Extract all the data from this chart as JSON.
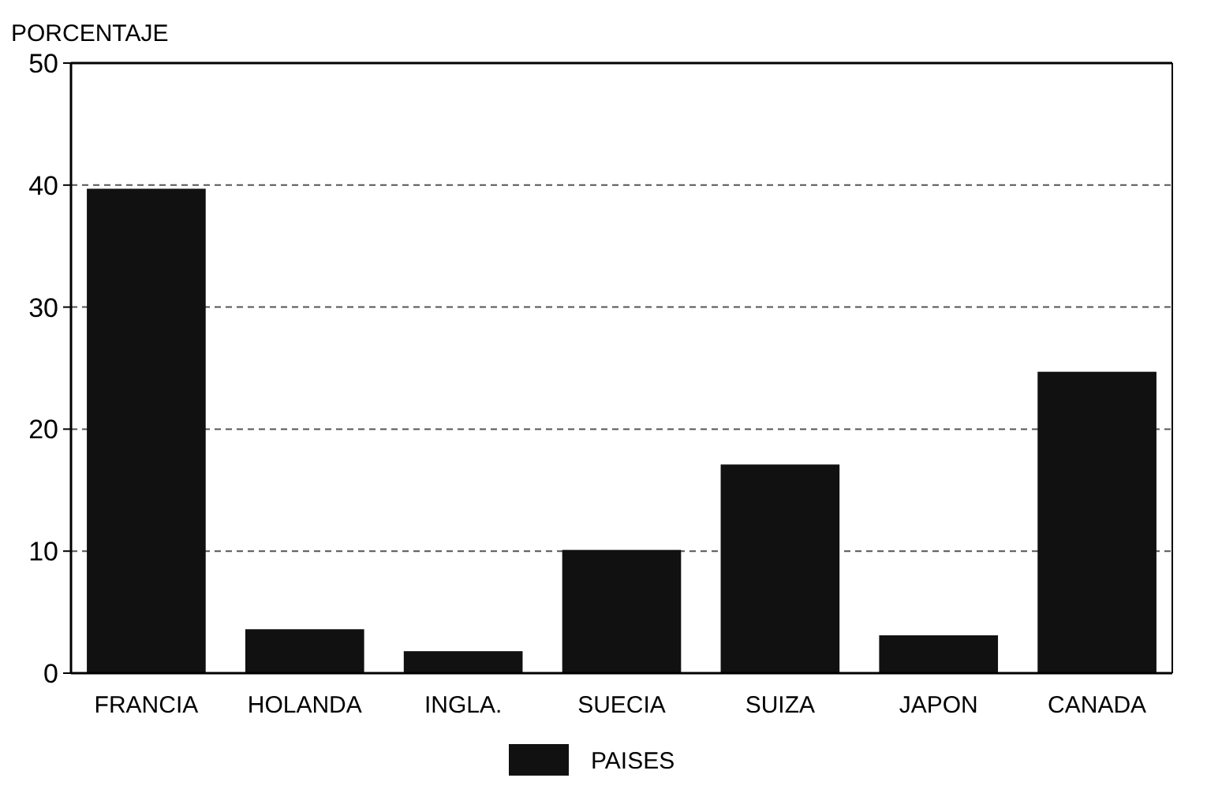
{
  "chart_data": {
    "type": "bar",
    "ylabel": "PORCENTAJE",
    "categories": [
      "FRANCIA",
      "HOLANDA",
      "INGLA.",
      "SUECIA",
      "SUIZA",
      "JAPON",
      "CANADA"
    ],
    "series": [
      {
        "name": "PAISES",
        "color": "#111111",
        "values": [
          39.7,
          3.6,
          1.8,
          10.1,
          17.1,
          3.1,
          24.7
        ]
      }
    ],
    "ylim": [
      0,
      50
    ],
    "yticks": [
      0,
      10,
      20,
      30,
      40,
      50
    ],
    "grid": "y",
    "legend": "bottom"
  }
}
